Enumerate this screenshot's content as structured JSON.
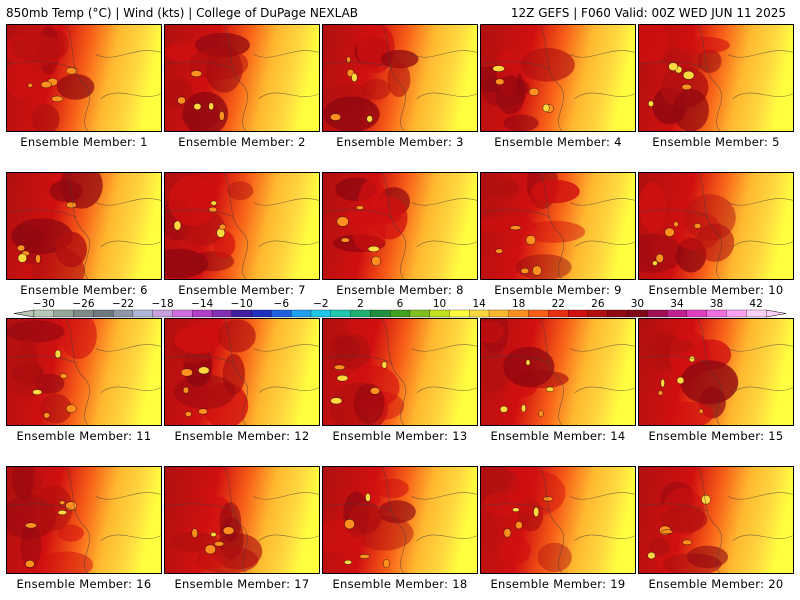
{
  "header": {
    "left": "850mb Temp (°C) | Wind (kts) | College of DuPage NEXLAB",
    "right": "12Z GEFS | F060 Valid: 00Z WED JUN 11 2025"
  },
  "panels": [
    {
      "label": "Ensemble Member: 1"
    },
    {
      "label": "Ensemble Member: 2"
    },
    {
      "label": "Ensemble Member: 3"
    },
    {
      "label": "Ensemble Member: 4"
    },
    {
      "label": "Ensemble Member: 5"
    },
    {
      "label": "Ensemble Member: 6"
    },
    {
      "label": "Ensemble Member: 7"
    },
    {
      "label": "Ensemble Member: 8"
    },
    {
      "label": "Ensemble Member: 9"
    },
    {
      "label": "Ensemble Member: 10"
    },
    {
      "label": "Ensemble Member: 11"
    },
    {
      "label": "Ensemble Member: 12"
    },
    {
      "label": "Ensemble Member: 13"
    },
    {
      "label": "Ensemble Member: 14"
    },
    {
      "label": "Ensemble Member: 15"
    },
    {
      "label": "Ensemble Member: 16"
    },
    {
      "label": "Ensemble Member: 17"
    },
    {
      "label": "Ensemble Member: 18"
    },
    {
      "label": "Ensemble Member: 19"
    },
    {
      "label": "Ensemble Member: 20"
    }
  ],
  "colorbar": {
    "tick_labels": [
      "−30",
      "−26",
      "−22",
      "−18",
      "−14",
      "−10",
      "−6",
      "−2",
      "2",
      "6",
      "10",
      "14",
      "18",
      "22",
      "26",
      "30",
      "34",
      "38",
      "42"
    ],
    "colors": [
      "#b8c8b8",
      "#98a898",
      "#808a88",
      "#707880",
      "#9098a8",
      "#b0b8d8",
      "#c8a0e0",
      "#d070e0",
      "#b040c8",
      "#8030b0",
      "#4020a0",
      "#2030c0",
      "#2060e0",
      "#20a0f0",
      "#20c8e8",
      "#20c8b0",
      "#20b070",
      "#209040",
      "#40a020",
      "#80c020",
      "#c0e020",
      "#ffff40",
      "#ffd840",
      "#ffb830",
      "#ff9020",
      "#f86018",
      "#e83010",
      "#d01010",
      "#b01010",
      "#900810",
      "#800818",
      "#a01050",
      "#c02090",
      "#e040c0",
      "#f070e0",
      "#ffa0f0",
      "#ffd0f8"
    ]
  }
}
